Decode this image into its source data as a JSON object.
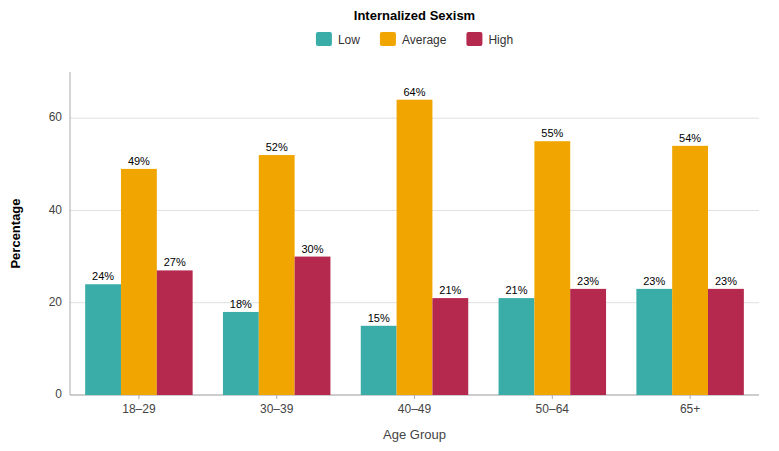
{
  "chart_data": {
    "type": "bar",
    "categories": [
      "18–29",
      "30–39",
      "40–49",
      "50–64",
      "65+"
    ],
    "series": [
      {
        "name": "Low",
        "color": "#3aada8",
        "values": [
          24,
          18,
          15,
          21,
          23
        ],
        "value_labels": [
          "24%",
          "18%",
          "15%",
          "21%",
          "23%"
        ]
      },
      {
        "name": "Average",
        "color": "#f0a500",
        "values": [
          49,
          52,
          64,
          55,
          54
        ],
        "value_labels": [
          "49%",
          "52%",
          "64%",
          "55%",
          "54%"
        ]
      },
      {
        "name": "High",
        "color": "#b5294e",
        "values": [
          27,
          30,
          21,
          23,
          23
        ],
        "value_labels": [
          "27%",
          "30%",
          "21%",
          "23%",
          "23%"
        ]
      }
    ],
    "legend_title": "Internalized Sexism",
    "xlabel": "Age Group",
    "ylabel": "Percentage",
    "ylim": [
      0,
      70
    ],
    "yticks": [
      0,
      20,
      40,
      60
    ],
    "grid": true,
    "legend": "top",
    "data_labels": true
  }
}
